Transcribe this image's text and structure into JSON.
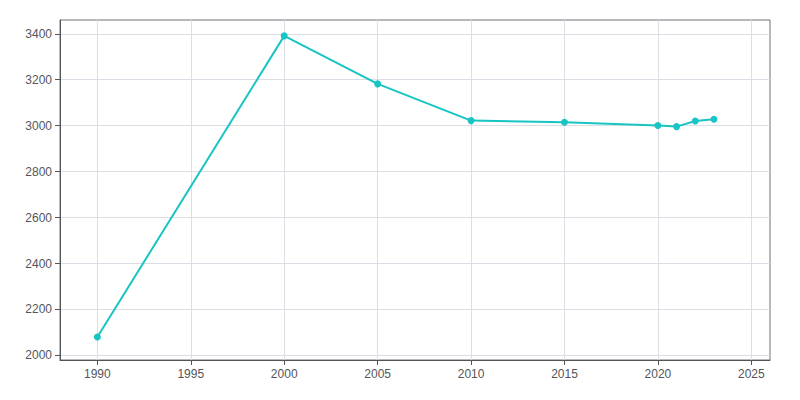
{
  "chart_data": {
    "type": "line",
    "x": [
      1990,
      2000,
      2005,
      2010,
      2015,
      2020,
      2021,
      2022,
      2023
    ],
    "values": [
      2080,
      3391,
      3182,
      3022,
      3015,
      3001,
      2996,
      3020,
      3028
    ],
    "color": "#19C4C4",
    "marker": "circle",
    "xlim": [
      1988,
      2026
    ],
    "ylim": [
      1980,
      3460
    ],
    "xticks": [
      1990,
      1995,
      2000,
      2005,
      2010,
      2015,
      2020,
      2025
    ],
    "yticks": [
      2000,
      2200,
      2400,
      2600,
      2800,
      3000,
      3200,
      3400
    ],
    "grid": true
  }
}
